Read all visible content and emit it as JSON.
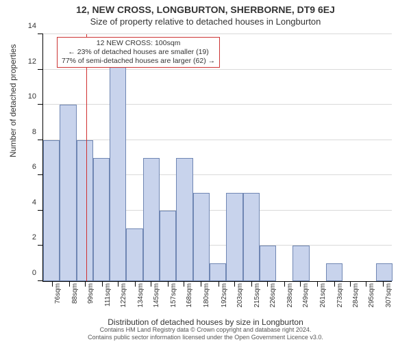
{
  "title": "12, NEW CROSS, LONGBURTON, SHERBORNE, DT9 6EJ",
  "subtitle": "Size of property relative to detached houses in Longburton",
  "y_axis_label": "Number of detached properties",
  "x_axis_label": "Distribution of detached houses by size in Longburton",
  "chart": {
    "type": "histogram",
    "background_color": "#ffffff",
    "grid_color": "#d9d9d9",
    "bar_fill": "#c8d3ec",
    "bar_border": "#6f86b3",
    "axis_color": "#000000",
    "ref_line_color": "#d03030",
    "x_min": 70,
    "x_max": 313,
    "y_min": 0,
    "y_max": 14,
    "y_tick_step": 2,
    "bar_bin_width": 11.6,
    "x_ticks": [
      76,
      88,
      99,
      111,
      122,
      134,
      145,
      157,
      168,
      180,
      192,
      203,
      215,
      226,
      238,
      249,
      261,
      273,
      284,
      295,
      307
    ],
    "x_tick_suffix": "sqm",
    "bars": [
      {
        "x_start": 70.0,
        "count": 8
      },
      {
        "x_start": 81.6,
        "count": 10
      },
      {
        "x_start": 93.2,
        "count": 8
      },
      {
        "x_start": 104.8,
        "count": 7
      },
      {
        "x_start": 116.4,
        "count": 13
      },
      {
        "x_start": 128.0,
        "count": 3
      },
      {
        "x_start": 139.6,
        "count": 7
      },
      {
        "x_start": 151.2,
        "count": 4
      },
      {
        "x_start": 162.8,
        "count": 7
      },
      {
        "x_start": 174.4,
        "count": 5
      },
      {
        "x_start": 186.0,
        "count": 1
      },
      {
        "x_start": 197.6,
        "count": 5
      },
      {
        "x_start": 209.2,
        "count": 5
      },
      {
        "x_start": 220.8,
        "count": 2
      },
      {
        "x_start": 232.4,
        "count": 0
      },
      {
        "x_start": 244.0,
        "count": 2
      },
      {
        "x_start": 255.6,
        "count": 0
      },
      {
        "x_start": 267.2,
        "count": 1
      },
      {
        "x_start": 278.8,
        "count": 0
      },
      {
        "x_start": 290.4,
        "count": 0
      },
      {
        "x_start": 302.0,
        "count": 1
      }
    ],
    "reference_line_x": 100
  },
  "callout": {
    "line1": "12 NEW CROSS: 100sqm",
    "line2": "← 23% of detached houses are smaller (19)",
    "line3": "77% of semi-detached houses are larger (62) →",
    "border_color": "#cc3333",
    "background": "#ffffff",
    "fontsize": 10.5
  },
  "footer_line1": "Contains HM Land Registry data © Crown copyright and database right 2024.",
  "footer_line2": "Contains public sector information licensed under the Open Government Licence v3.0."
}
